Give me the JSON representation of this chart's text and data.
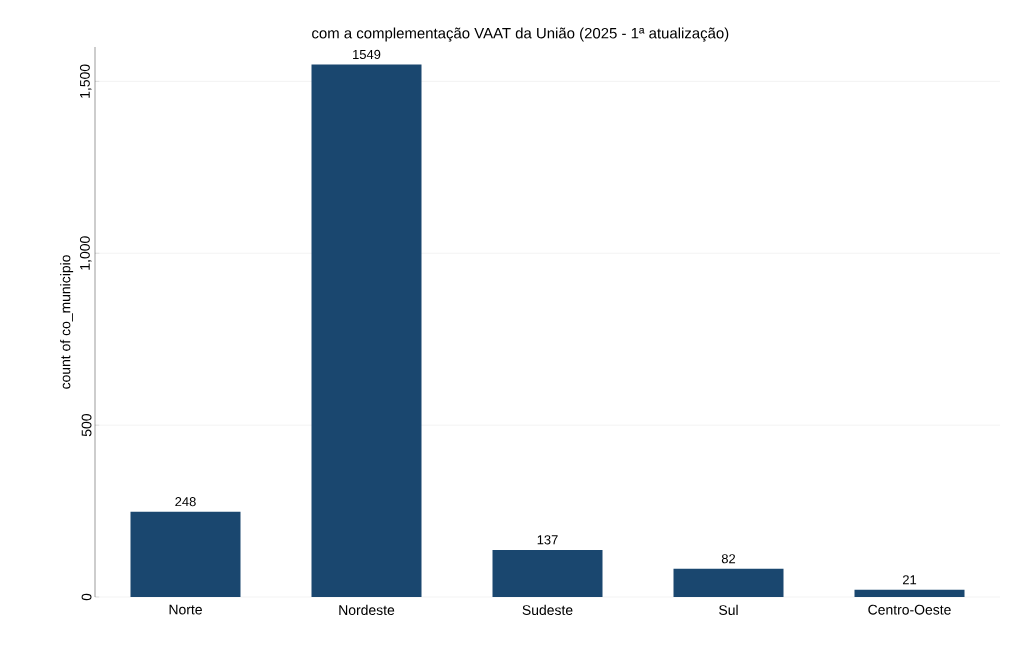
{
  "chart_data": {
    "type": "bar",
    "title": "com a complementação VAAT da União (2025 - 1ª atualização)",
    "ylabel": "count of co_municipio",
    "categories": [
      "Norte",
      "Nordeste",
      "Sudeste",
      "Sul",
      "Centro-Oeste"
    ],
    "values": [
      248,
      1549,
      137,
      82,
      21
    ],
    "color": "#1a476f",
    "ylim": [
      0,
      1600
    ],
    "yticks": [
      0,
      {
        "value": 500,
        "label": "500"
      },
      {
        "value": 1000,
        "label": "1,000"
      },
      {
        "value": 1500,
        "label": "1,500"
      }
    ],
    "grid": "y",
    "data_labels": true
  }
}
